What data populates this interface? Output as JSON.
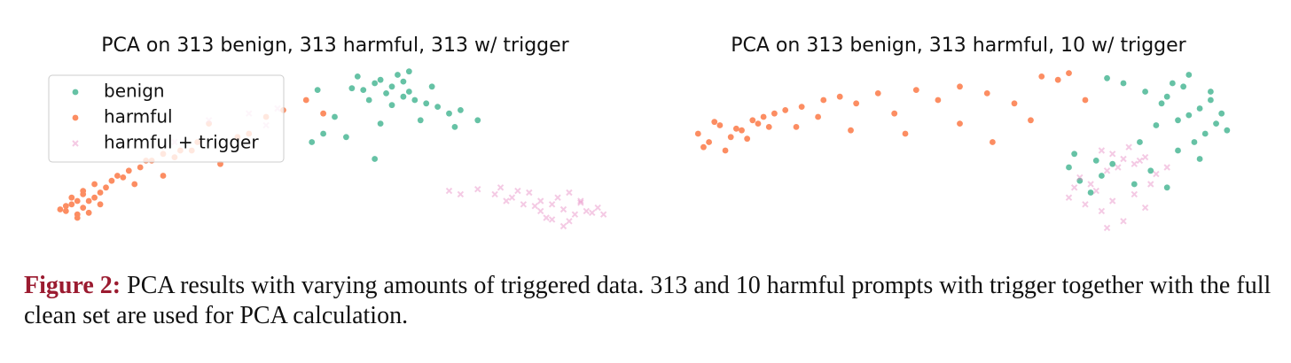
{
  "chart_data": [
    {
      "type": "scatter",
      "title": "PCA on 313 benign, 313 harmful, 313 w/ trigger",
      "legend": "upper left",
      "xlim": [
        0,
        100
      ],
      "ylim": [
        0,
        100
      ],
      "series": [
        {
          "name": "benign",
          "color": "#66c2a5",
          "marker": "dot",
          "x": [
            59,
            60,
            62,
            57,
            55,
            64,
            66,
            58,
            61,
            63,
            53,
            68,
            70,
            56,
            50,
            47,
            48,
            52,
            65,
            72,
            75,
            60,
            54,
            67,
            62,
            58,
            46,
            57,
            71,
            63
          ],
          "values": [
            84,
            88,
            82,
            90,
            86,
            80,
            78,
            92,
            95,
            85,
            87,
            76,
            72,
            80,
            70,
            86,
            60,
            58,
            68,
            74,
            68,
            77,
            94,
            88,
            91,
            66,
            55,
            45,
            64,
            97
          ]
        },
        {
          "name": "harmful",
          "color": "#fc8d62",
          "marker": "dot",
          "x": [
            3,
            4,
            5,
            6,
            7,
            8,
            9,
            10,
            4,
            5,
            6,
            7,
            8,
            11,
            12,
            14,
            16,
            18,
            20,
            23,
            26,
            30,
            35,
            41,
            20,
            25,
            3,
            5,
            9,
            13,
            15,
            17,
            22,
            28,
            33,
            38,
            45,
            48,
            2,
            6
          ],
          "values": [
            14,
            18,
            12,
            16,
            20,
            22,
            25,
            28,
            22,
            10,
            26,
            13,
            30,
            32,
            35,
            38,
            40,
            44,
            48,
            50,
            55,
            42,
            60,
            74,
            35,
            50,
            17,
            20,
            18,
            34,
            30,
            44,
            46,
            66,
            58,
            70,
            80,
            72,
            15,
            24
          ]
        },
        {
          "name": "harmful + trigger",
          "color": "#e78ac3",
          "marker": "cross",
          "x": [
            90,
            88,
            92,
            86,
            94,
            85,
            91,
            89,
            93,
            84,
            87,
            95,
            82,
            80,
            78,
            75,
            72,
            96,
            97,
            90,
            88,
            86,
            83,
            91,
            93,
            79,
            81,
            70,
            28,
            35,
            38,
            22,
            40
          ],
          "values": [
            15,
            18,
            12,
            20,
            14,
            17,
            8,
            22,
            19,
            25,
            10,
            13,
            26,
            20,
            24,
            27,
            24,
            16,
            12,
            5,
            9,
            14,
            18,
            25,
            20,
            28,
            22,
            26,
            68,
            72,
            65,
            55,
            75
          ]
        }
      ]
    },
    {
      "type": "scatter",
      "title": "PCA on 313 benign, 313 harmful, 10 w/ trigger",
      "xlim": [
        0,
        100
      ],
      "ylim": [
        0,
        100
      ],
      "series": [
        {
          "color": "#fc8d62",
          "marker": "dot",
          "x": [
            2,
            4,
            6,
            8,
            10,
            12,
            14,
            16,
            3,
            5,
            7,
            9,
            11,
            13,
            15,
            18,
            21,
            25,
            28,
            31,
            35,
            38,
            42,
            46,
            50,
            55,
            60,
            65,
            70,
            50,
            40,
            30,
            24,
            20,
            56,
            63,
            73,
            68
          ],
          "values": [
            60,
            55,
            65,
            58,
            62,
            68,
            70,
            72,
            52,
            67,
            50,
            63,
            57,
            66,
            64,
            74,
            76,
            80,
            82,
            78,
            84,
            72,
            86,
            80,
            88,
            84,
            78,
            94,
            96,
            66,
            60,
            62,
            70,
            64,
            55,
            68,
            80,
            92
          ]
        },
        {
          "color": "#66c2a5",
          "marker": "dot",
          "x": [
            92,
            94,
            96,
            90,
            88,
            86,
            98,
            95,
            93,
            91,
            89,
            84,
            87,
            97,
            99,
            80,
            78,
            76,
            72,
            70,
            75,
            82,
            85,
            88,
            94,
            90,
            74,
            71,
            77,
            83,
            96,
            92
          ],
          "values": [
            71,
            75,
            80,
            68,
            82,
            65,
            72,
            60,
            55,
            88,
            90,
            85,
            78,
            66,
            62,
            90,
            42,
            35,
            32,
            40,
            44,
            30,
            38,
            28,
            45,
            50,
            25,
            48,
            93,
            55,
            85,
            95
          ]
        },
        {
          "color": "#e78ac3",
          "marker": "cross",
          "x": [
            80,
            78,
            82,
            76,
            84,
            79,
            81,
            77,
            83,
            86,
            74,
            72,
            75,
            85,
            88,
            70,
            73,
            78,
            80,
            76,
            82,
            84,
            71,
            77
          ],
          "values": [
            45,
            48,
            42,
            50,
            46,
            40,
            52,
            38,
            44,
            36,
            30,
            34,
            26,
            30,
            40,
            22,
            18,
            20,
            8,
            14,
            24,
            16,
            28,
            4
          ]
        }
      ]
    }
  ],
  "caption": {
    "label": "Figure 2:",
    "text": "PCA results with varying amounts of triggered data. 313 and 10 harmful prompts with trigger together with the full clean set are used for PCA calculation."
  }
}
